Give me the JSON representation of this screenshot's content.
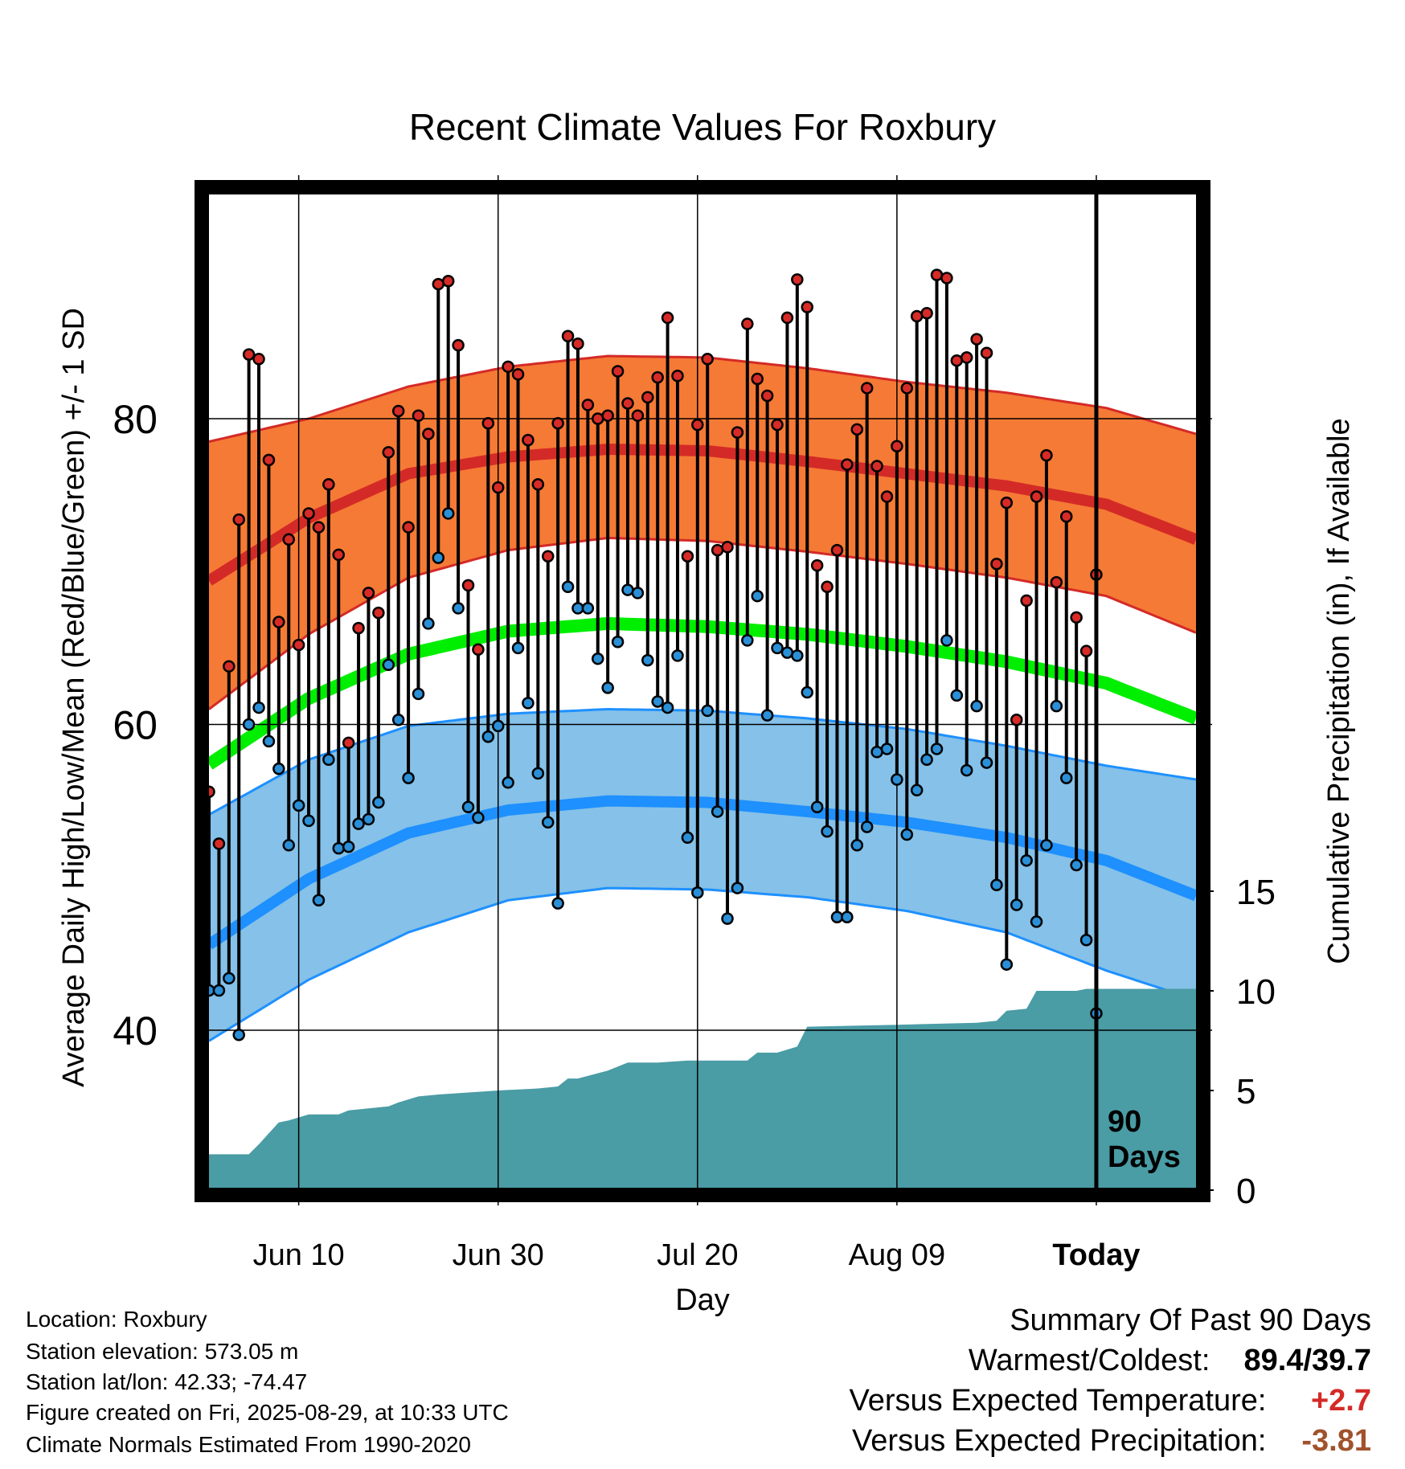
{
  "chart_data": {
    "type": "line",
    "title": "Recent Climate Values For Roxbury",
    "xlabel": "Day",
    "ylabel": "Average Daily High/Low/Mean (Red/Blue/Green) +/- 1 SD",
    "y2label": "Cumulative Precipitation (in), If Available",
    "x_ticks": [
      "Jun 10",
      "Jun 30",
      "Jul 20",
      "Aug 09",
      "Today"
    ],
    "y_ticks": [
      "40",
      "60",
      "80"
    ],
    "y2_ticks": [
      "0",
      "5",
      "10",
      "15"
    ],
    "ylim": [
      30,
      95
    ],
    "y2lim": [
      0,
      50
    ],
    "x_day_range": [
      -89,
      10
    ],
    "window_label": "90 Days",
    "normals": {
      "days": [
        -89,
        -79,
        -69,
        -59,
        -49,
        -39,
        -29,
        -19,
        -9,
        1,
        10
      ],
      "high_mean": [
        69.4,
        73.5,
        76.4,
        77.5,
        78.0,
        77.9,
        77.2,
        76.4,
        75.6,
        74.4,
        72.1
      ],
      "high_sd_upper": [
        78.5,
        80.0,
        82.1,
        83.4,
        84.1,
        84.0,
        83.3,
        82.4,
        81.7,
        80.7,
        79.0
      ],
      "high_sd_lower": [
        61.0,
        65.9,
        69.6,
        71.4,
        72.2,
        72.0,
        71.3,
        70.5,
        69.6,
        68.4,
        66.0
      ],
      "mean": [
        57.4,
        61.7,
        64.6,
        66.1,
        66.6,
        66.4,
        65.9,
        65.1,
        64.1,
        62.7,
        60.4
      ],
      "low_mean": [
        45.6,
        49.9,
        52.9,
        54.4,
        55.0,
        54.9,
        54.3,
        53.6,
        52.6,
        51.1,
        48.8
      ],
      "low_sd_upper": [
        54.1,
        57.7,
        59.9,
        60.7,
        61.0,
        60.9,
        60.4,
        59.7,
        58.6,
        57.3,
        56.4
      ],
      "low_sd_lower": [
        39.3,
        43.3,
        46.4,
        48.5,
        49.3,
        49.2,
        48.7,
        47.8,
        46.4,
        43.9,
        42.0
      ]
    },
    "daily_high": [
      55.6,
      52.2,
      63.8,
      73.4,
      84.2,
      83.9,
      77.3,
      66.7,
      72.1,
      65.2,
      73.8,
      72.9,
      75.7,
      71.1,
      58.8,
      66.3,
      68.6,
      67.3,
      77.8,
      80.5,
      72.9,
      80.2,
      79.0,
      88.8,
      89.0,
      84.8,
      69.1,
      64.9,
      79.7,
      75.5,
      83.4,
      82.9,
      78.6,
      75.7,
      71.0,
      79.7,
      85.4,
      84.9,
      80.9,
      80.0,
      80.2,
      83.1,
      81.0,
      80.2,
      81.4,
      82.7,
      86.6,
      82.8,
      71.0,
      79.6,
      83.9,
      71.4,
      71.6,
      79.1,
      86.2,
      82.6,
      81.5,
      79.6,
      86.6,
      89.1,
      87.3,
      70.4,
      69.0,
      71.4,
      77.0,
      79.3,
      82.0,
      76.9,
      74.9,
      78.2,
      82.0,
      86.7,
      86.9,
      89.4,
      89.2,
      83.8,
      84.0,
      85.2,
      84.3,
      70.5,
      74.5,
      60.3,
      68.1,
      74.9,
      77.6,
      69.3,
      73.6,
      67.0,
      64.8,
      69.8
    ],
    "daily_low": [
      42.6,
      42.6,
      43.4,
      39.7,
      60.0,
      61.1,
      58.9,
      57.1,
      52.1,
      54.7,
      53.7,
      48.5,
      57.7,
      51.9,
      52.0,
      53.5,
      53.8,
      54.9,
      63.9,
      60.3,
      56.5,
      62.0,
      66.6,
      70.9,
      73.8,
      67.6,
      54.6,
      53.9,
      59.2,
      59.9,
      56.2,
      65.0,
      61.4,
      56.8,
      53.6,
      48.3,
      69.0,
      67.6,
      67.6,
      64.3,
      62.4,
      65.4,
      68.8,
      68.6,
      64.2,
      61.5,
      61.1,
      64.5,
      52.6,
      49.0,
      60.9,
      54.3,
      47.3,
      49.3,
      65.5,
      68.4,
      60.6,
      65.0,
      64.7,
      64.5,
      62.1,
      54.6,
      53.0,
      47.4,
      47.4,
      52.1,
      53.3,
      58.2,
      58.4,
      56.4,
      52.8,
      55.7,
      57.7,
      58.4,
      65.5,
      61.9,
      57.0,
      61.2,
      57.5,
      49.5,
      44.3,
      48.2,
      51.1,
      47.1,
      52.1,
      61.2,
      56.5,
      50.8,
      45.9,
      41.1
    ],
    "cumulative_precip": {
      "days": [
        -89,
        -85,
        -84,
        -82,
        -81,
        -79,
        -76,
        -75,
        -71,
        -70,
        -68,
        -66,
        -60,
        -56,
        -54,
        -53,
        -52,
        -49,
        -48,
        -47,
        -44,
        -41,
        -35,
        -34,
        -32,
        -30,
        -29,
        -20,
        -12,
        -10,
        -9,
        -7,
        -6,
        -2,
        -1,
        10
      ],
      "values": [
        1.8,
        1.8,
        2.3,
        3.4,
        3.5,
        3.8,
        3.8,
        4.0,
        4.2,
        4.4,
        4.7,
        4.8,
        5.0,
        5.1,
        5.2,
        5.6,
        5.6,
        6.0,
        6.2,
        6.4,
        6.4,
        6.5,
        6.5,
        6.9,
        6.9,
        7.2,
        8.2,
        8.3,
        8.4,
        8.5,
        9.0,
        9.1,
        10.0,
        10.0,
        10.1,
        10.1
      ]
    },
    "colors": {
      "high_band": "#f57a35",
      "high_line": "#d42a27",
      "mean_line": "#00ee00",
      "low_band": "#85c1e8",
      "low_line": "#1e90ff",
      "precip_fill": "#4a9ca5",
      "high_dot": "#d62b27",
      "low_dot": "#2a8fd6"
    }
  },
  "footer": {
    "location": "Location: Roxbury",
    "elevation": "Station elevation: 573.05 m",
    "latlon": "Station lat/lon: 42.33; -74.47",
    "created": "Figure created on Fri, 2025-08-29, at 10:33 UTC",
    "normals": "Climate Normals Estimated From 1990-2020"
  },
  "summary": {
    "title": "Summary Of Past 90 Days",
    "warmest_coldest_label": "Warmest/Coldest:",
    "warmest_coldest_value": "89.4/39.7",
    "temp_label": "Versus Expected Temperature:",
    "temp_value": "+2.7",
    "temp_color": "#d42a27",
    "precip_label": "Versus Expected Precipitation:",
    "precip_value": "-3.81",
    "precip_color": "#a0522d"
  }
}
